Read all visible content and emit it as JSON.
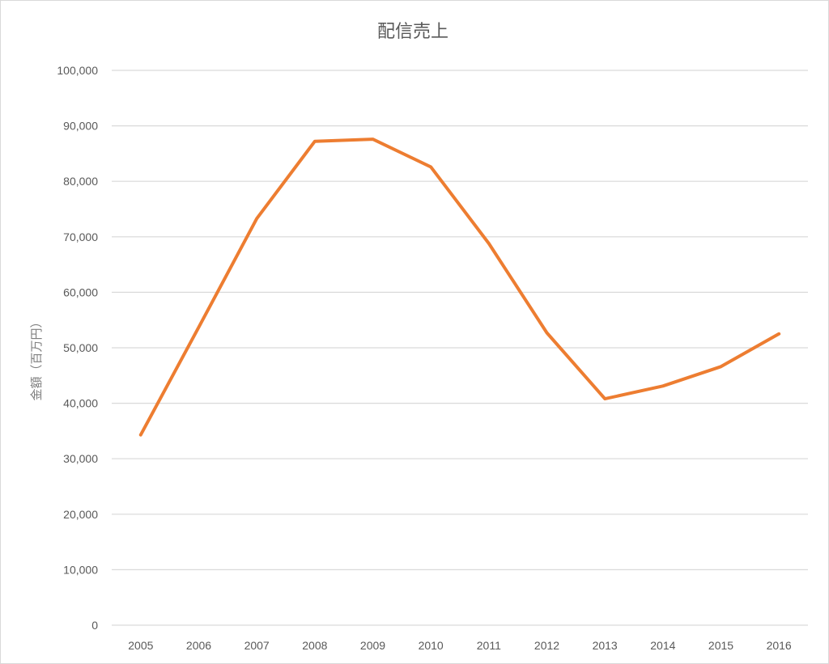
{
  "chart_data": {
    "type": "line",
    "title": "配信売上",
    "ylabel": "金額（百万円）",
    "xlabel": "",
    "ylim": [
      0,
      100000
    ],
    "yticks": [
      0,
      10000,
      20000,
      30000,
      40000,
      50000,
      60000,
      70000,
      80000,
      90000,
      100000
    ],
    "ytick_labels": [
      "0",
      "10,000",
      "20,000",
      "30,000",
      "40,000",
      "50,000",
      "60,000",
      "70,000",
      "80,000",
      "90,000",
      "100,000"
    ],
    "categories": [
      "2005",
      "2006",
      "2007",
      "2008",
      "2009",
      "2010",
      "2011",
      "2012",
      "2013",
      "2014",
      "2015",
      "2016"
    ],
    "series": [
      {
        "values": [
          34300,
          53700,
          73300,
          87200,
          87600,
          82600,
          68800,
          52700,
          40800,
          43100,
          46600,
          52500
        ],
        "color": "#ed7d31"
      }
    ],
    "grid": true,
    "legend": "none"
  }
}
